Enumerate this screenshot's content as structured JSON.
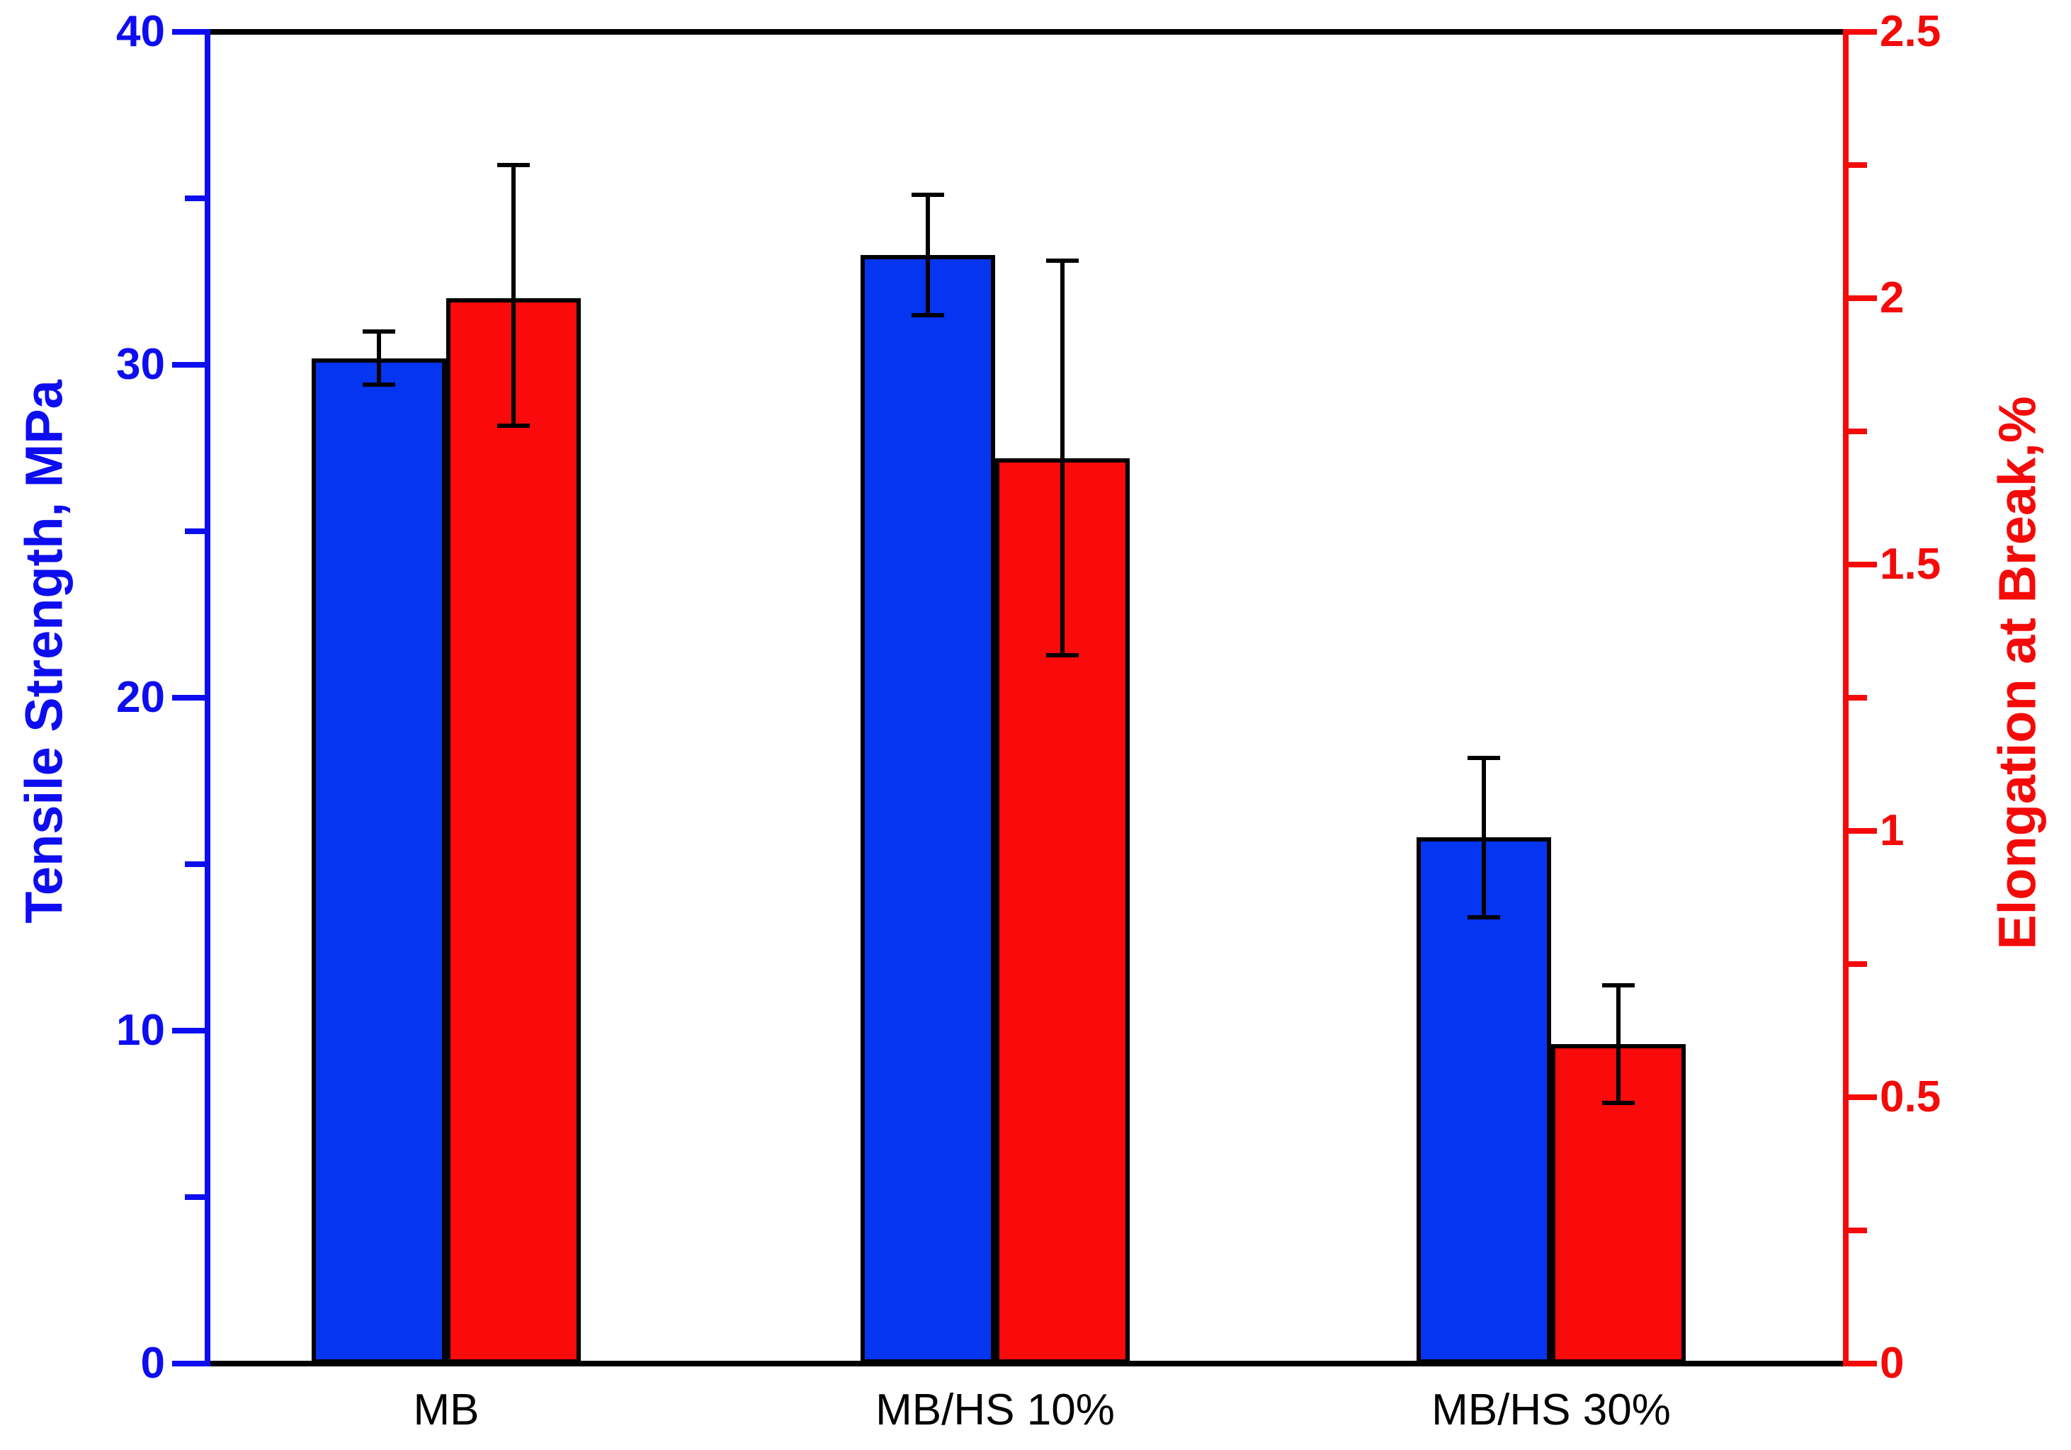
{
  "figure": {
    "background": "#ffffff"
  },
  "chart_data": {
    "type": "bar",
    "title": "",
    "categories": [
      "MB",
      "MB/HS 10%",
      "MB/HS 30%"
    ],
    "series": [
      {
        "name": "Tensile Strength",
        "axis": "left",
        "color": "#0535F0",
        "values": [
          30.2,
          33.3,
          15.8
        ],
        "err_low": [
          29.4,
          31.5,
          13.4
        ],
        "err_high": [
          31.0,
          35.1,
          18.2
        ]
      },
      {
        "name": "Elongation at Break",
        "axis": "right",
        "color": "#FA0A0A",
        "values": [
          2.0,
          1.7,
          0.6
        ],
        "err_low": [
          1.76,
          1.33,
          0.49
        ],
        "err_high": [
          2.25,
          2.07,
          0.71
        ]
      }
    ],
    "left_axis": {
      "label": "Tensile Strength, MPa",
      "color": "#0D0DF0",
      "min": 0,
      "max": 40,
      "major_ticks": [
        0,
        10,
        20,
        30,
        40
      ],
      "tick_labels": [
        "0",
        "10",
        "20",
        "30",
        "40"
      ],
      "minor_ticks": [
        5,
        15,
        25,
        35
      ]
    },
    "right_axis": {
      "label": "Elongation at Break,%",
      "color": "#F50A0A",
      "min": 0,
      "max": 2.5,
      "major_ticks": [
        0,
        0.5,
        1,
        1.5,
        2,
        2.5
      ],
      "tick_labels": [
        "0",
        "0.5",
        "1",
        "1.5",
        "2",
        "2.5"
      ],
      "minor_ticks": [
        0.25,
        0.75,
        1.25,
        1.75,
        2.25
      ]
    },
    "x_axis": {
      "color": "#000000"
    },
    "error_bar_color": "#000000",
    "grid": false,
    "legend": null
  }
}
